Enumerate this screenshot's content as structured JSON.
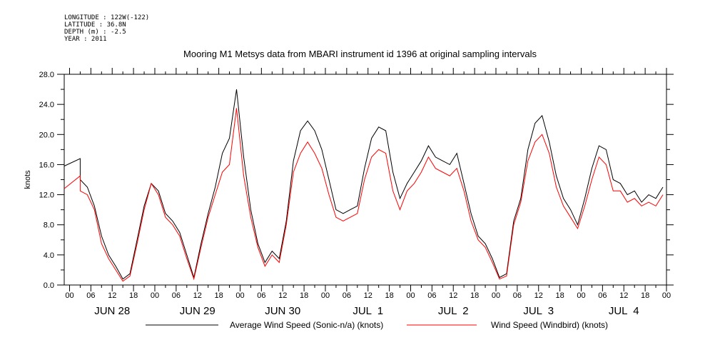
{
  "header": {
    "longitude": "LONGITUDE : 122W(-122)",
    "latitude": "LATITUDE : 36.8N",
    "depth": "DEPTH (m) : -2.5",
    "year": "YEAR : 2011"
  },
  "chart_data": {
    "type": "line",
    "title": "Mooring M1 Metsys data from MBARI instrument id 1396 at original sampling intervals",
    "ylabel": "knots",
    "xlabel": "",
    "ylim": [
      0,
      28
    ],
    "y_ticks": [
      "0.0",
      "4.0",
      "8.0",
      "12.0",
      "16.0",
      "20.0",
      "24.0",
      "28.0"
    ],
    "x_unit": "hours since JUN 28 00:00",
    "xlim": [
      -1.5,
      168
    ],
    "x_tick_labels": [
      "00",
      "06",
      "12",
      "18",
      "00",
      "06",
      "12",
      "18",
      "00",
      "06",
      "12",
      "18",
      "00",
      "06",
      "12",
      "18",
      "00",
      "06",
      "12",
      "18",
      "00",
      "06",
      "12",
      "18",
      "00",
      "06",
      "12",
      "18",
      "00"
    ],
    "day_labels": [
      "JUN 28",
      "JUN 29",
      "JUN 30",
      "JUL  1",
      "JUL  2",
      "JUL  3",
      "JUL  4"
    ],
    "grid": false,
    "legend_position": "bottom",
    "series": [
      {
        "name": "Average Wind Speed (Sonic-n/a) (knots)",
        "color": "#000000",
        "x": [
          -1.5,
          3,
          3,
          5,
          7,
          9,
          11,
          13,
          15,
          17,
          19,
          21,
          23,
          25,
          27,
          29,
          31,
          33,
          35,
          37,
          39,
          41,
          43,
          45,
          47,
          49,
          51,
          53,
          55,
          57,
          59,
          61,
          63,
          65,
          67,
          69,
          71,
          73,
          75,
          77,
          79,
          81,
          83,
          85,
          87,
          89,
          91,
          93,
          95,
          97,
          99,
          101,
          103,
          105,
          107,
          109,
          111,
          113,
          115,
          117,
          119,
          121,
          123,
          125,
          127,
          129,
          131,
          133,
          135,
          137,
          139,
          141,
          143,
          145,
          147,
          149,
          151,
          153,
          155,
          157,
          159,
          161,
          163,
          165,
          167
        ],
        "values": [
          15.8,
          16.8,
          14.0,
          13.0,
          10.5,
          6.5,
          4.0,
          2.5,
          0.8,
          1.5,
          6.0,
          10.5,
          13.5,
          12.5,
          9.5,
          8.5,
          7.0,
          4.0,
          1.0,
          5.5,
          9.5,
          13.0,
          17.5,
          19.5,
          26.0,
          17.0,
          10.0,
          5.5,
          3.0,
          4.5,
          3.5,
          8.5,
          16.5,
          20.5,
          21.8,
          20.5,
          18.0,
          14.0,
          10.0,
          9.5,
          10.0,
          10.5,
          15.5,
          19.5,
          21.0,
          20.5,
          15.0,
          11.5,
          13.5,
          15.0,
          16.5,
          18.5,
          17.0,
          16.5,
          16.0,
          17.5,
          13.5,
          9.5,
          6.5,
          5.5,
          3.5,
          1.0,
          1.5,
          8.5,
          11.5,
          18.0,
          21.5,
          22.5,
          19.0,
          14.5,
          11.5,
          10.0,
          8.0,
          11.5,
          15.5,
          18.5,
          18.0,
          14.0,
          13.5,
          12.0,
          12.5,
          11.0,
          12.0,
          11.5,
          13.0
        ]
      },
      {
        "name": "Wind Speed (Windbird) (knots)",
        "color": "#ff0000",
        "x": [
          -1.5,
          3,
          3,
          5,
          7,
          9,
          11,
          13,
          15,
          17,
          19,
          21,
          23,
          25,
          27,
          29,
          31,
          33,
          35,
          37,
          39,
          41,
          43,
          45,
          47,
          49,
          51,
          53,
          55,
          57,
          59,
          61,
          63,
          65,
          67,
          69,
          71,
          73,
          75,
          77,
          79,
          81,
          83,
          85,
          87,
          89,
          91,
          93,
          95,
          97,
          99,
          101,
          103,
          105,
          107,
          109,
          111,
          113,
          115,
          117,
          119,
          121,
          123,
          125,
          127,
          129,
          131,
          133,
          135,
          137,
          139,
          141,
          143,
          145,
          147,
          149,
          151,
          153,
          155,
          157,
          159,
          161,
          163,
          165,
          167
        ],
        "values": [
          12.8,
          14.5,
          12.5,
          12.0,
          10.0,
          5.5,
          3.5,
          2.0,
          0.5,
          1.2,
          5.5,
          10.0,
          13.5,
          12.0,
          9.0,
          8.0,
          6.5,
          3.5,
          0.8,
          5.0,
          9.0,
          12.0,
          15.0,
          16.0,
          23.5,
          14.5,
          9.0,
          5.0,
          2.5,
          4.0,
          3.0,
          8.0,
          15.0,
          17.5,
          19.0,
          17.5,
          15.5,
          12.0,
          9.0,
          8.5,
          9.0,
          9.5,
          14.0,
          17.0,
          18.0,
          17.5,
          12.5,
          10.0,
          12.5,
          13.5,
          15.0,
          17.0,
          15.5,
          15.0,
          14.5,
          15.5,
          12.5,
          8.5,
          6.0,
          5.0,
          3.0,
          0.8,
          1.2,
          8.0,
          11.0,
          16.5,
          19.0,
          20.0,
          17.5,
          13.0,
          10.5,
          9.0,
          7.5,
          10.5,
          14.0,
          17.0,
          16.0,
          12.5,
          12.5,
          11.0,
          11.5,
          10.5,
          11.0,
          10.5,
          12.0
        ]
      }
    ]
  }
}
